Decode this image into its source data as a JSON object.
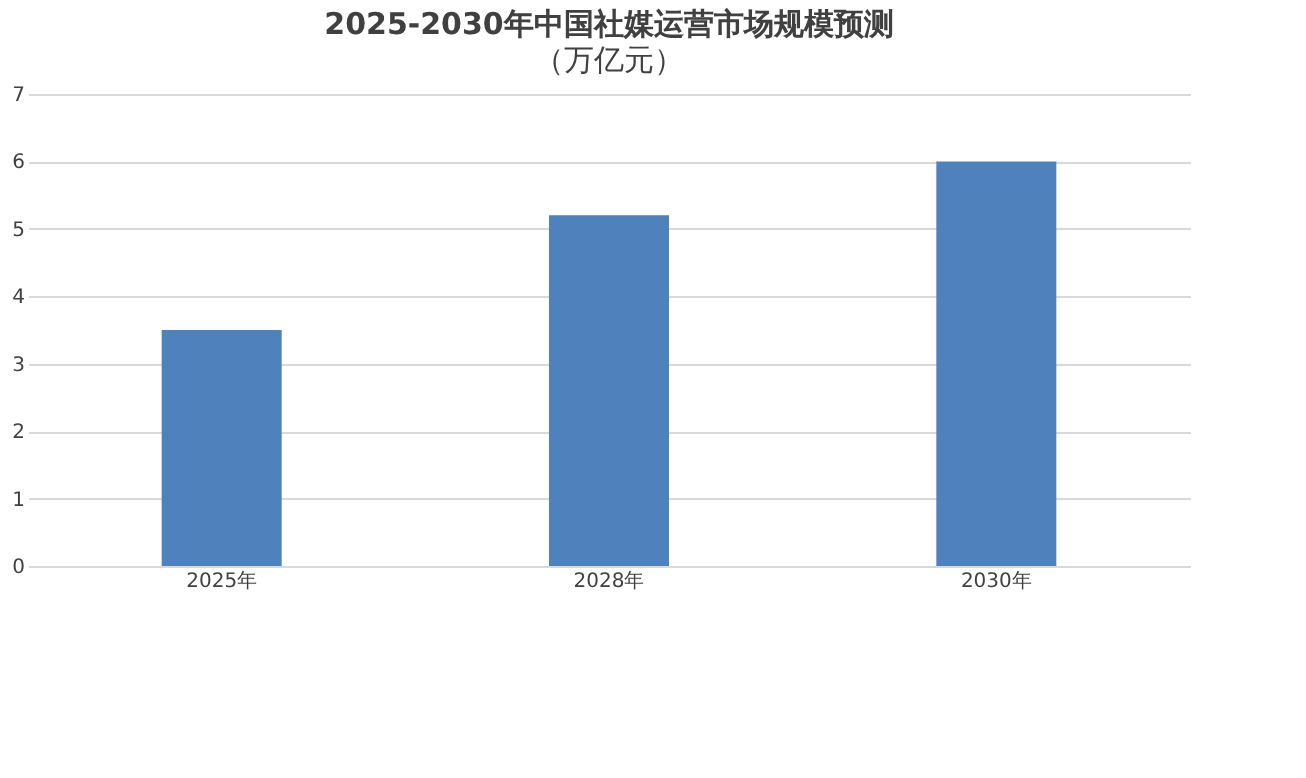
{
  "chart_data": {
    "type": "bar",
    "title": "2025-2030年中国社媒运营市场规模预测",
    "subtitle": "（万亿元）",
    "categories": [
      "2025年",
      "2028年",
      "2030年"
    ],
    "values": [
      3.5,
      5.2,
      6
    ],
    "color": "#4f81bd",
    "ylim": [
      0,
      7
    ],
    "yticks": [
      0,
      1,
      2,
      3,
      4,
      5,
      6,
      7
    ],
    "grid": "y"
  }
}
